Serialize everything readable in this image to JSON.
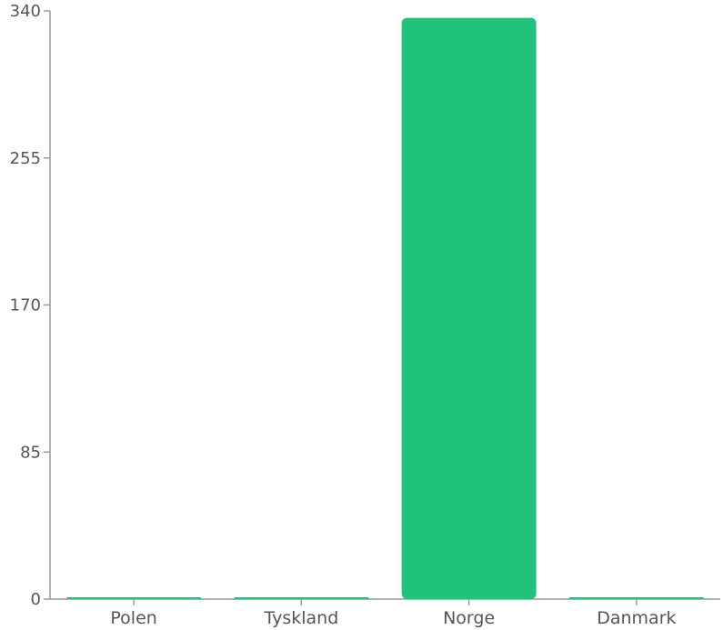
{
  "chart_data": {
    "type": "bar",
    "categories": [
      "Polen",
      "Tyskland",
      "Norge",
      "Danmark"
    ],
    "values": [
      1,
      1,
      336,
      1
    ],
    "ylim": [
      0,
      340
    ],
    "yticks": [
      {
        "value": 0,
        "label": "0"
      },
      {
        "value": 85,
        "label": "85"
      },
      {
        "value": 170,
        "label": "170"
      },
      {
        "value": 255,
        "label": "255"
      },
      {
        "value": 340,
        "label": "340"
      }
    ],
    "bar_color": "#21c27a",
    "axis_color": "#9a9a9a",
    "grid": false,
    "legend": "none"
  }
}
